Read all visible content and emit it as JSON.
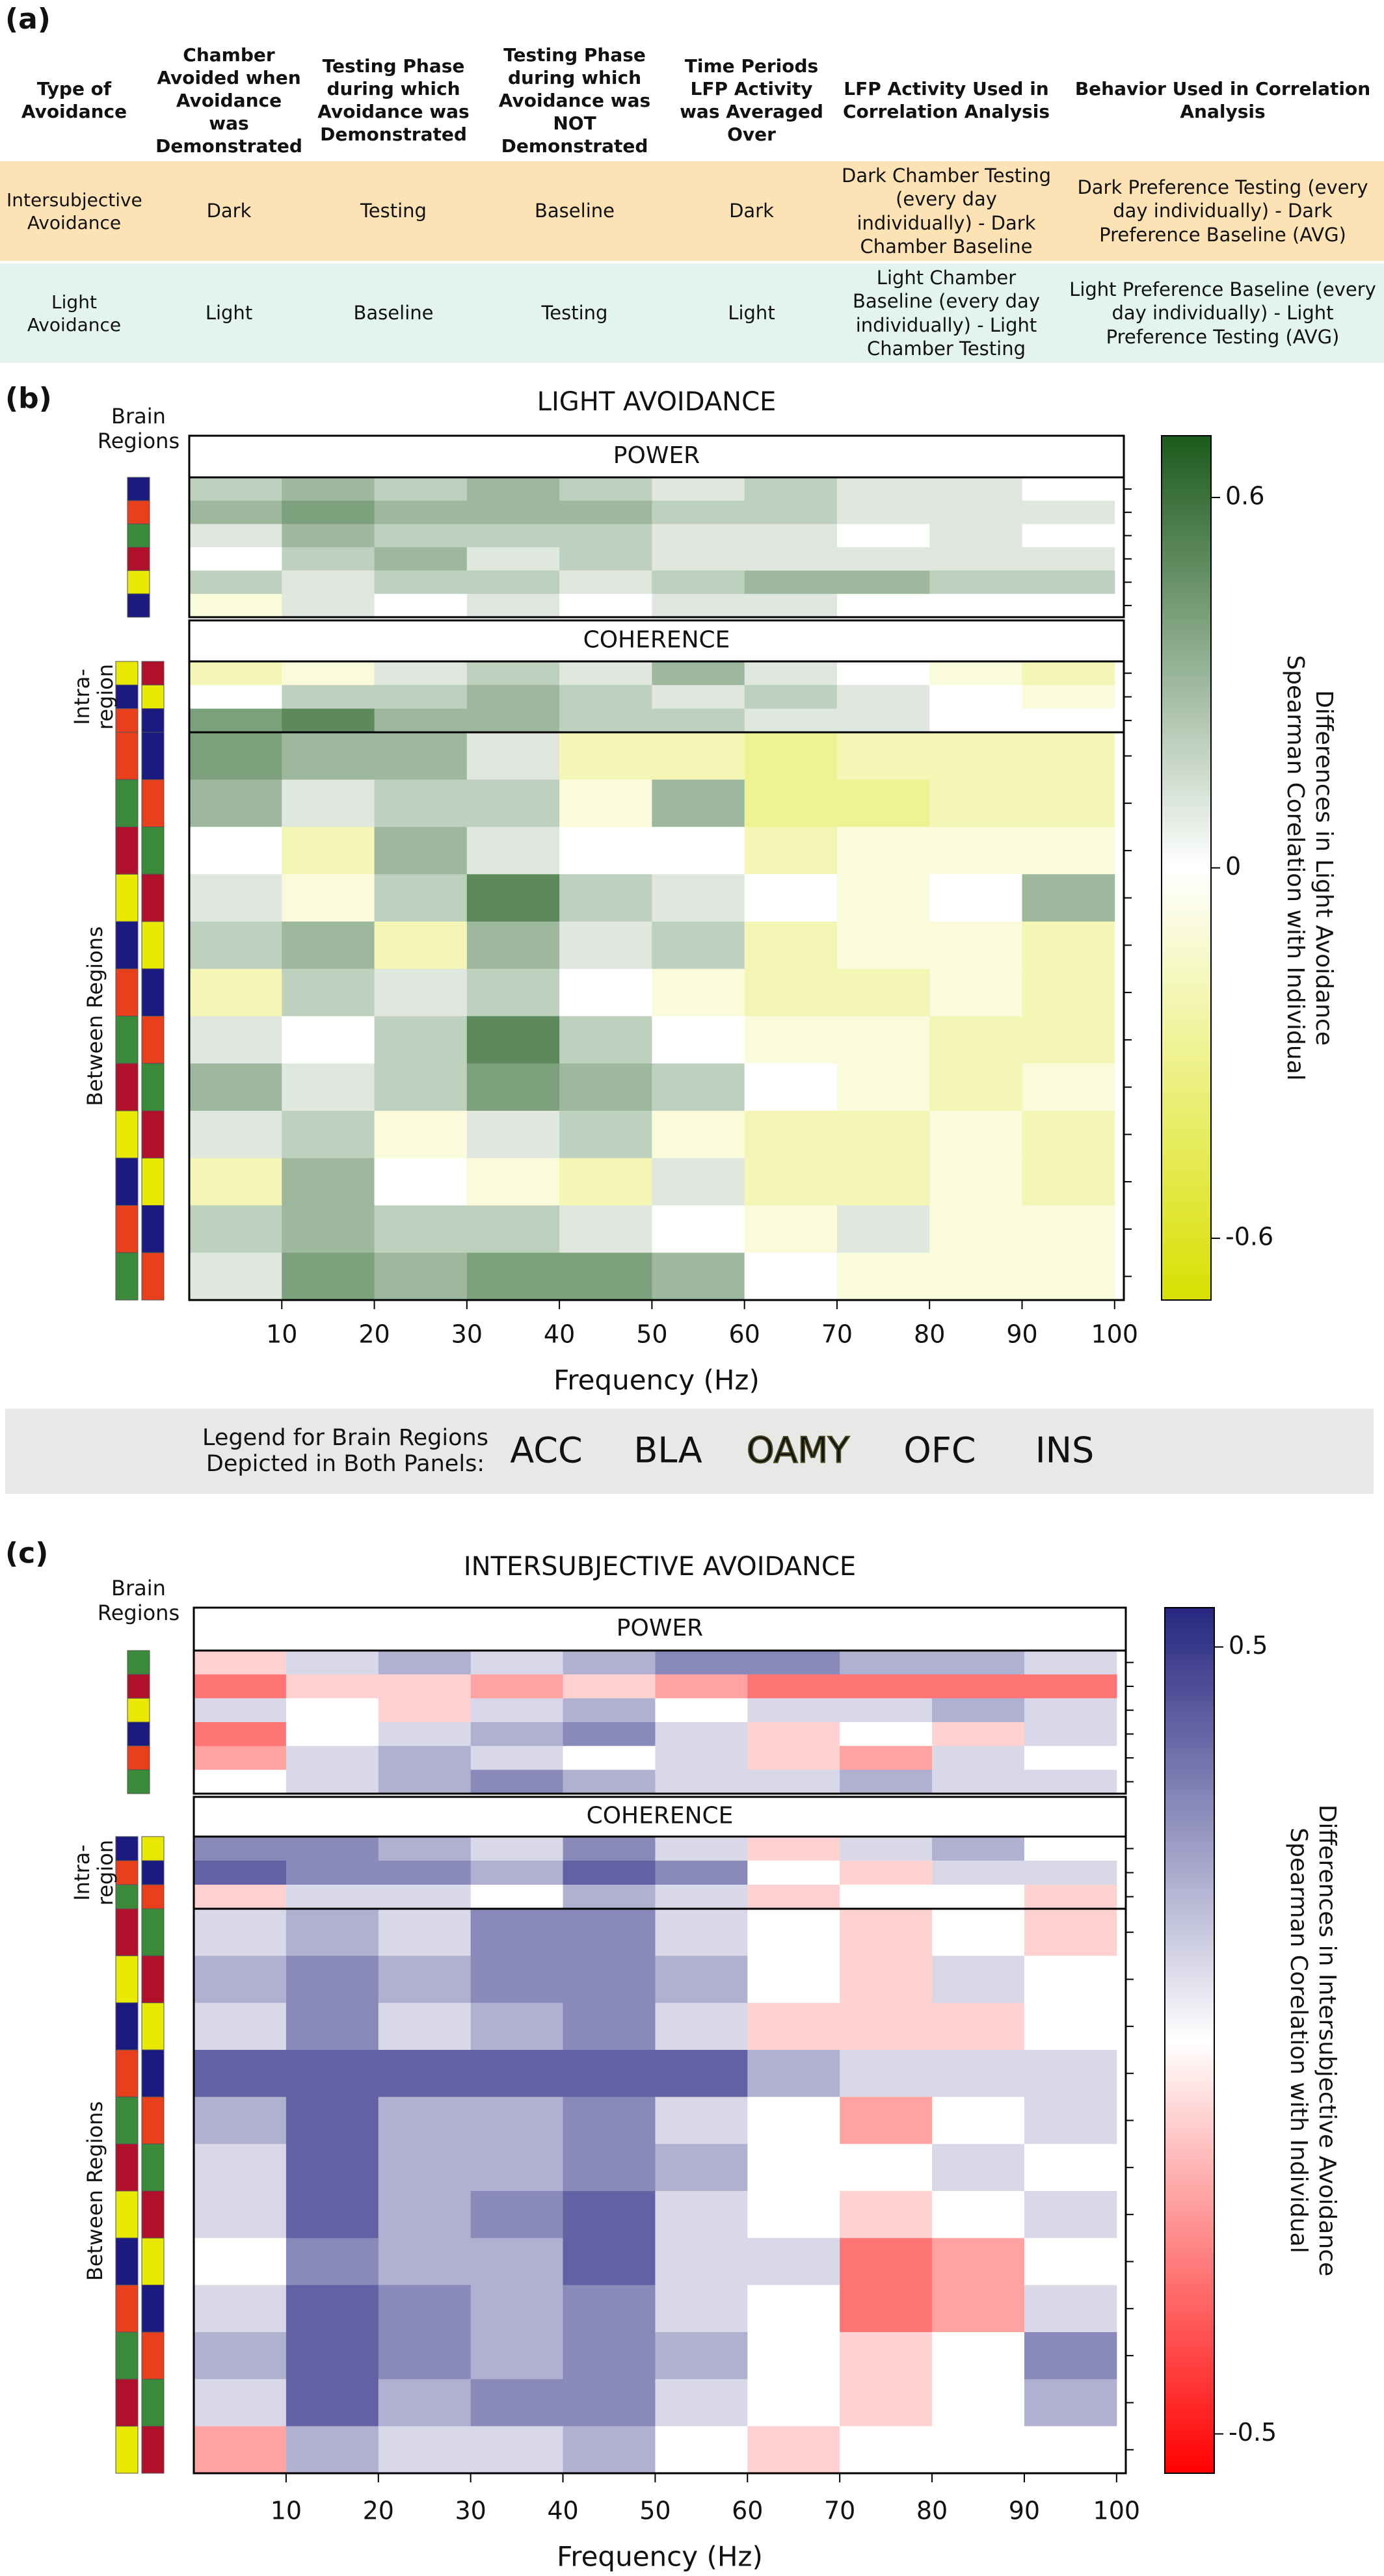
{
  "panel_a": {
    "label": "(a)",
    "table": {
      "header": [
        "Type of Avoidance",
        "Chamber Avoided when Avoidance was Demonstrated",
        "Testing Phase during which Avoidance was Demonstrated",
        "Testing Phase during which Avoidance was NOT Demonstrated",
        "Time Periods LFP Activity was Averaged Over",
        "LFP Activity Used in Correlation Analysis",
        "Behavior Used in Correlation Analysis"
      ],
      "rows": [
        [
          "Intersubjective Avoidance",
          "Dark",
          "Testing",
          "Baseline",
          "Dark",
          "Dark Chamber Testing (every day individually) - Dark Chamber Baseline",
          "Dark Preference Testing (every day individually) - Dark Preference Baseline (AVG)"
        ],
        [
          "Light Avoidance",
          "Light",
          "Baseline",
          "Testing",
          "Light",
          "Light Chamber Baseline (every day individually) - Light Chamber Testing",
          "Light Preference Baseline (every day individually) - Light Preference Testing (AVG)"
        ]
      ]
    }
  },
  "legend": {
    "title": [
      "Legend for Brain Regions",
      "Depicted in Both Panels:"
    ],
    "items": [
      {
        "name": "ACC",
        "color": "#b0102a"
      },
      {
        "name": "BLA",
        "color": "#e8401c"
      },
      {
        "name": "OAMY",
        "color": "#e8e800",
        "outline": "#4a4a20"
      },
      {
        "name": "OFC",
        "color": "#3a8a3a"
      },
      {
        "name": "INS",
        "color": "#1a1a80"
      }
    ]
  },
  "chart_data": [
    {
      "type": "heatmap",
      "label": "(b)",
      "title": "LIGHT AVOIDANCE",
      "x_label": "Frequency (Hz)",
      "region_labels": {
        "power": [
          "Brain",
          "Regions"
        ],
        "intra": [
          "Intra-",
          "region"
        ],
        "between": "Between Regions"
      },
      "colorbar_label": [
        "Spearman Corelation with Individual",
        "Differences in Light Avoidance"
      ],
      "colors": {
        "negative": "#d8e000",
        "zero": "#ffffff",
        "positive": "#1c5a1c"
      },
      "zlim": [
        -0.7,
        0.7
      ],
      "zticks": [
        -0.6,
        0,
        0.6
      ],
      "xlim": [
        0,
        101
      ],
      "xticks": [
        10,
        20,
        30,
        40,
        50,
        60,
        70,
        80,
        90,
        100
      ],
      "x_bins": [
        0,
        10,
        20,
        30,
        40,
        50,
        60,
        70,
        80,
        90,
        100
      ],
      "power": {
        "label": "POWER",
        "values": [
          [
            0.2,
            0.3,
            0.2,
            0.3,
            0.2,
            0.1,
            0.2,
            0.1,
            0.1,
            0.0
          ],
          [
            0.3,
            0.4,
            0.3,
            0.3,
            0.3,
            0.2,
            0.2,
            0.1,
            0.1,
            0.1
          ],
          [
            0.1,
            0.3,
            0.2,
            0.2,
            0.2,
            0.1,
            0.1,
            0.0,
            0.1,
            0.0
          ],
          [
            0.0,
            0.2,
            0.3,
            0.1,
            0.2,
            0.1,
            0.1,
            0.1,
            0.1,
            0.1
          ],
          [
            0.2,
            0.1,
            0.2,
            0.2,
            0.1,
            0.2,
            0.3,
            0.3,
            0.2,
            0.2
          ],
          [
            -0.1,
            0.1,
            0.0,
            0.1,
            0.0,
            0.1,
            0.1,
            0.0,
            0.0,
            0.0
          ]
        ]
      },
      "coherence": {
        "label": "COHERENCE",
        "intra_values": [
          [
            -0.2,
            -0.1,
            0.1,
            0.2,
            0.1,
            0.3,
            0.1,
            0.0,
            -0.1,
            -0.2
          ],
          [
            0.0,
            0.2,
            0.2,
            0.3,
            0.2,
            0.1,
            0.2,
            0.1,
            0.0,
            -0.1
          ],
          [
            0.4,
            0.5,
            0.3,
            0.3,
            0.2,
            0.2,
            0.1,
            0.1,
            0.0,
            0.0
          ]
        ],
        "between_values": [
          [
            0.4,
            0.3,
            0.3,
            0.1,
            -0.2,
            -0.2,
            -0.3,
            -0.2,
            -0.2,
            -0.2
          ],
          [
            0.3,
            0.1,
            0.2,
            0.2,
            -0.1,
            0.3,
            -0.3,
            -0.3,
            -0.2,
            -0.2
          ],
          [
            0.0,
            -0.2,
            0.3,
            0.1,
            0.0,
            0.0,
            -0.2,
            -0.1,
            -0.1,
            -0.1
          ],
          [
            0.1,
            -0.1,
            0.2,
            0.5,
            0.2,
            0.1,
            0.0,
            -0.1,
            0.0,
            0.3
          ],
          [
            0.2,
            0.3,
            -0.2,
            0.3,
            0.1,
            0.2,
            -0.2,
            -0.1,
            -0.1,
            -0.2
          ],
          [
            -0.2,
            0.2,
            0.1,
            0.2,
            0.0,
            -0.1,
            -0.2,
            -0.2,
            -0.1,
            -0.2
          ],
          [
            0.1,
            0.0,
            0.2,
            0.5,
            0.2,
            0.0,
            -0.1,
            -0.1,
            -0.2,
            -0.2
          ],
          [
            0.3,
            0.1,
            0.2,
            0.4,
            0.3,
            0.2,
            0.0,
            -0.1,
            -0.2,
            -0.1
          ],
          [
            0.1,
            0.2,
            -0.1,
            0.1,
            0.2,
            -0.1,
            -0.2,
            -0.2,
            -0.1,
            -0.2
          ],
          [
            -0.2,
            0.3,
            0.0,
            -0.1,
            -0.2,
            0.1,
            -0.2,
            -0.2,
            -0.1,
            -0.2
          ],
          [
            0.2,
            0.3,
            0.2,
            0.2,
            0.1,
            0.0,
            -0.1,
            0.1,
            -0.1,
            -0.1
          ],
          [
            0.1,
            0.4,
            0.3,
            0.4,
            0.4,
            0.3,
            0.0,
            -0.1,
            -0.1,
            -0.1
          ]
        ]
      }
    },
    {
      "type": "heatmap",
      "label": "(c)",
      "title": "INTERSUBJECTIVE AVOIDANCE",
      "x_label": "Frequency (Hz)",
      "region_labels": {
        "power": [
          "Brain",
          "Regions"
        ],
        "intra": [
          "Intra-",
          "region"
        ],
        "between": "Between Regions"
      },
      "colorbar_label": [
        "Spearman Corelation with Individual",
        "Differences in Intersubjective Avoidance"
      ],
      "colors": {
        "negative": "#ff0000",
        "zero": "#ffffff",
        "positive": "#262680"
      },
      "zlim": [
        -0.55,
        0.55
      ],
      "zticks": [
        -0.5,
        0.5
      ],
      "xlim": [
        0,
        101
      ],
      "xticks": [
        10,
        20,
        30,
        40,
        50,
        60,
        70,
        80,
        90,
        100
      ],
      "x_bins": [
        0,
        10,
        20,
        30,
        40,
        50,
        60,
        70,
        80,
        90,
        100
      ],
      "power": {
        "label": "POWER",
        "values": [
          [
            -0.1,
            0.1,
            0.2,
            0.1,
            0.2,
            0.3,
            0.3,
            0.2,
            0.2,
            0.1
          ],
          [
            -0.3,
            -0.1,
            -0.1,
            -0.2,
            -0.1,
            -0.2,
            -0.3,
            -0.3,
            -0.3,
            -0.3
          ],
          [
            0.1,
            0.0,
            -0.1,
            0.1,
            0.2,
            0.0,
            0.1,
            0.1,
            0.2,
            0.1
          ],
          [
            -0.3,
            0.0,
            0.1,
            0.2,
            0.3,
            0.1,
            -0.1,
            0.0,
            -0.1,
            0.1
          ],
          [
            -0.2,
            0.1,
            0.2,
            0.1,
            0.0,
            0.1,
            -0.1,
            -0.2,
            0.1,
            0.0
          ],
          [
            0.0,
            0.1,
            0.2,
            0.3,
            0.2,
            0.1,
            0.1,
            0.2,
            0.1,
            0.1
          ]
        ]
      },
      "coherence": {
        "label": "COHERENCE",
        "intra_values": [
          [
            0.3,
            0.3,
            0.2,
            0.1,
            0.3,
            0.1,
            -0.1,
            0.1,
            0.2,
            0.0
          ],
          [
            0.4,
            0.3,
            0.3,
            0.2,
            0.4,
            0.3,
            0.0,
            -0.1,
            0.1,
            0.1
          ],
          [
            -0.1,
            0.1,
            0.1,
            0.0,
            0.2,
            0.1,
            -0.1,
            0.0,
            0.0,
            -0.1
          ]
        ],
        "between_values": [
          [
            0.1,
            0.2,
            0.1,
            0.3,
            0.3,
            0.1,
            0.0,
            -0.1,
            0.0,
            -0.1
          ],
          [
            0.2,
            0.3,
            0.2,
            0.3,
            0.3,
            0.2,
            0.0,
            -0.1,
            0.1,
            0.0
          ],
          [
            0.1,
            0.3,
            0.1,
            0.2,
            0.3,
            0.1,
            -0.1,
            -0.1,
            -0.1,
            0.0
          ],
          [
            0.4,
            0.4,
            0.4,
            0.4,
            0.4,
            0.4,
            0.2,
            0.1,
            0.1,
            0.1
          ],
          [
            0.2,
            0.4,
            0.2,
            0.2,
            0.3,
            0.1,
            0.0,
            -0.2,
            0.0,
            0.1
          ],
          [
            0.1,
            0.4,
            0.2,
            0.2,
            0.3,
            0.2,
            0.0,
            0.0,
            0.1,
            0.0
          ],
          [
            0.1,
            0.4,
            0.2,
            0.3,
            0.4,
            0.1,
            0.0,
            -0.1,
            0.0,
            0.1
          ],
          [
            0.0,
            0.3,
            0.2,
            0.2,
            0.4,
            0.1,
            0.1,
            -0.3,
            -0.2,
            0.0
          ],
          [
            0.1,
            0.4,
            0.3,
            0.2,
            0.3,
            0.1,
            0.0,
            -0.3,
            -0.2,
            0.1
          ],
          [
            0.2,
            0.4,
            0.3,
            0.2,
            0.3,
            0.2,
            0.0,
            -0.1,
            0.0,
            0.3
          ],
          [
            0.1,
            0.4,
            0.2,
            0.3,
            0.3,
            0.1,
            0.0,
            -0.1,
            0.0,
            0.2
          ],
          [
            -0.2,
            0.2,
            0.1,
            0.1,
            0.2,
            0.0,
            -0.1,
            0.0,
            0.0,
            0.0
          ]
        ]
      }
    }
  ]
}
